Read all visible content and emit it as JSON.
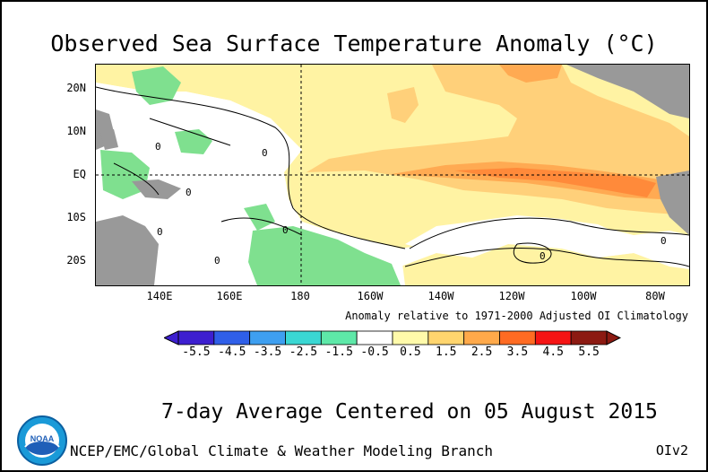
{
  "title": "Observed Sea Surface Temperature Anomaly (°C)",
  "map": {
    "lat_labels": [
      "20N",
      "10N",
      "EQ",
      "10S",
      "20S"
    ],
    "lon_labels": [
      "140E",
      "160E",
      "180",
      "160W",
      "140W",
      "120W",
      "100W",
      "80W"
    ],
    "contour_labels": [
      "0",
      "0",
      "0",
      "0",
      "0",
      "0",
      "0",
      "0"
    ]
  },
  "note": "Anomaly relative to 1971-2000 Adjusted OI Climatology",
  "colorbar": {
    "ticks": [
      "-5.5",
      "-4.5",
      "-3.5",
      "-2.5",
      "-1.5",
      "-0.5",
      "0.5",
      "1.5",
      "2.5",
      "3.5",
      "4.5",
      "5.5"
    ],
    "colors": [
      "#3d1fd0",
      "#2f5fe8",
      "#3e9ff0",
      "#3ad7d3",
      "#5ee8a8",
      "#ffffff",
      "#fffaaa",
      "#ffd56e",
      "#ffa94a",
      "#ff6b22",
      "#f51414",
      "#8c1a12"
    ]
  },
  "colors": {
    "land": "#999999",
    "neutral": "#ffffff",
    "warm1": "#fff3a3",
    "warm2": "#ffd07a",
    "warm3": "#ffaa52",
    "warm4": "#ff8a3a",
    "cool1": "#7fe08f",
    "cool2": "#4fd0b0"
  },
  "subtitle": "7-day Average Centered on 05 August 2015",
  "credit": "NCEP/EMC/Global Climate & Weather Modeling Branch",
  "version": "OIv2",
  "logo_text": "NOAA"
}
